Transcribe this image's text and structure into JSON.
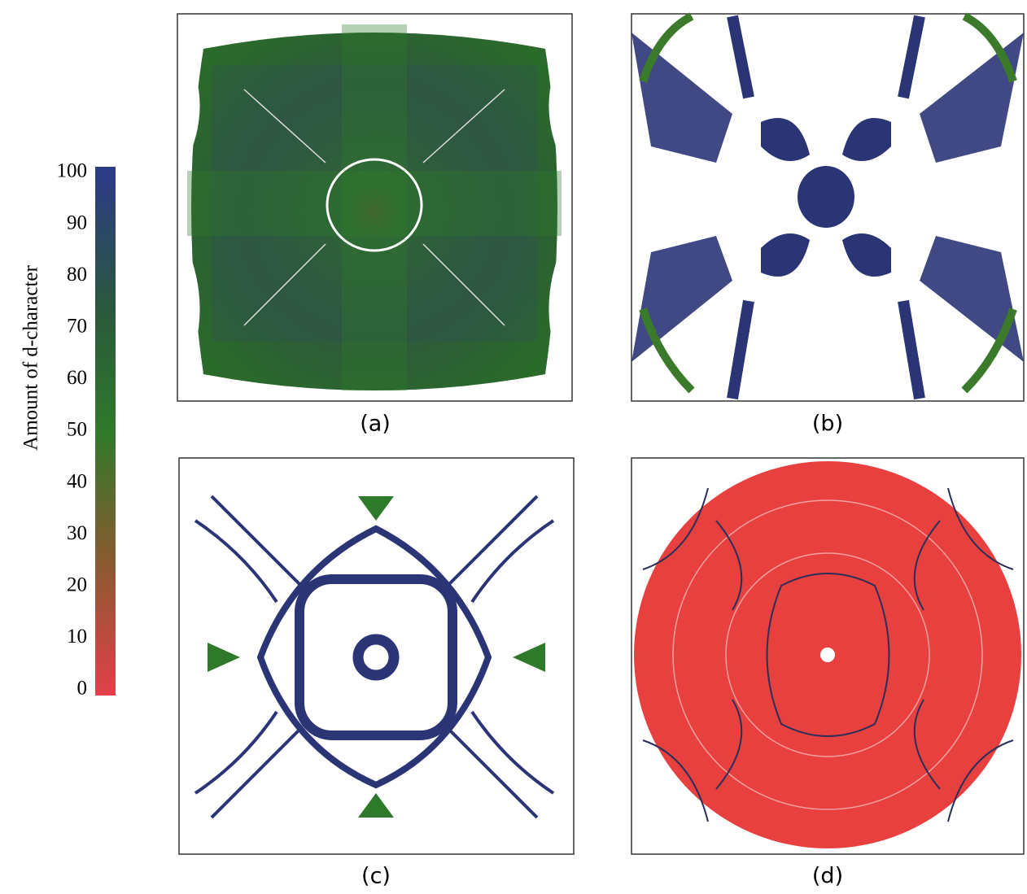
{
  "colorbar": {
    "label": "Amount of d-character",
    "lim": [
      0,
      100
    ],
    "ticks": [
      0,
      10,
      20,
      30,
      40,
      50,
      60,
      70,
      80,
      90,
      100
    ]
  },
  "panels": [
    {
      "caption": "(a)"
    },
    {
      "caption": "(b)"
    },
    {
      "caption": "(c)"
    },
    {
      "caption": "(d)"
    }
  ]
}
